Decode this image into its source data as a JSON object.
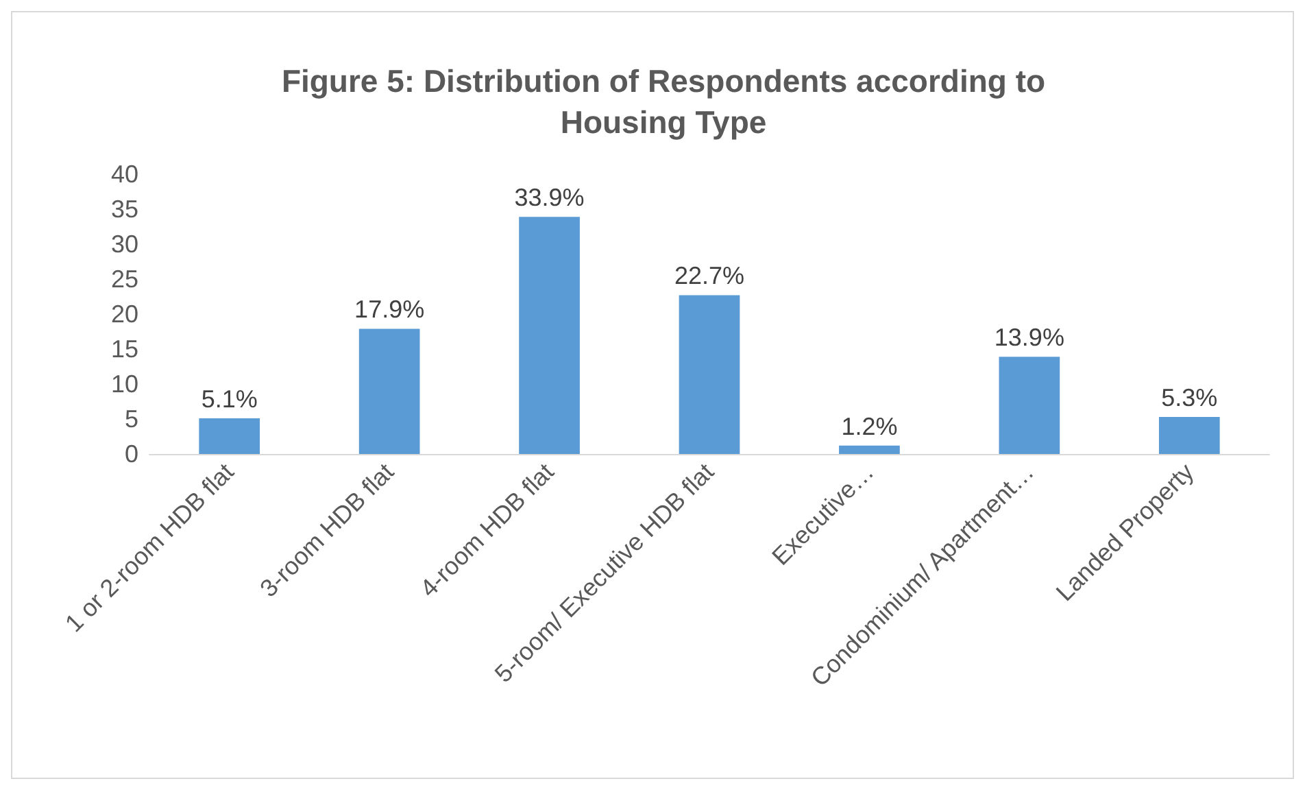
{
  "chart_data": {
    "type": "bar",
    "title": "Figure 5: Distribution of Respondents according to\nHousing Type",
    "categories": [
      "1 or 2-room HDB flat",
      "3-room HDB flat",
      "4-room HDB flat",
      "5-room/ Executive HDB flat",
      "Executive…",
      "Condominium/ Apartment…",
      "Landed Property"
    ],
    "values": [
      5.1,
      17.9,
      33.9,
      22.7,
      1.2,
      13.9,
      5.3
    ],
    "value_labels": [
      "5.1%",
      "17.9%",
      "33.9%",
      "22.7%",
      "1.2%",
      "13.9%",
      "5.3%"
    ],
    "color": "#5b9bd5",
    "ylim": [
      0,
      40
    ],
    "yticks": [
      0,
      5,
      10,
      15,
      20,
      25,
      30,
      35,
      40
    ],
    "grid": false
  }
}
